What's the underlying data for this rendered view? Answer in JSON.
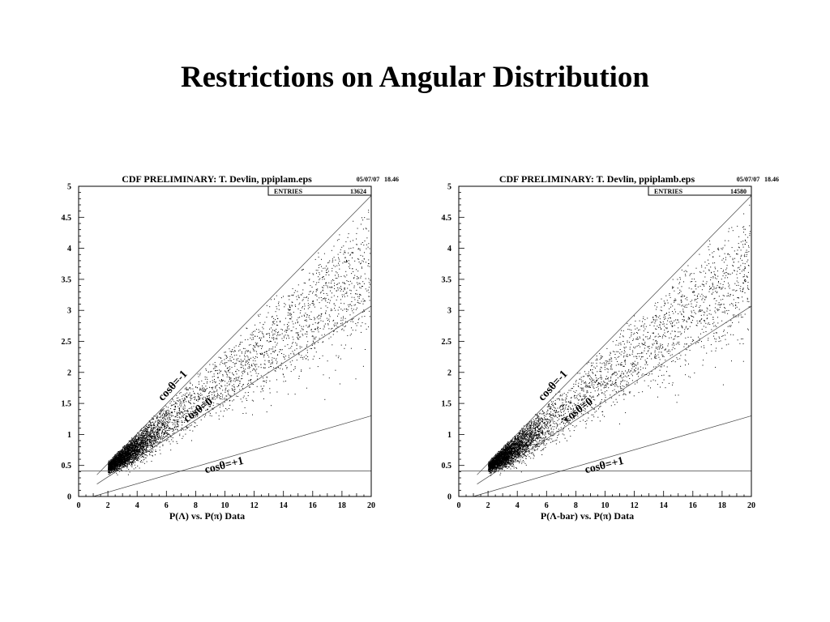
{
  "slide_title": "Restrictions on Angular Distribution",
  "colors": {
    "ink": "#000000",
    "line": "#444444",
    "background": "#ffffff"
  },
  "chart_data": [
    {
      "type": "scatter",
      "title": "CDF PRELIMINARY: T. Devlin, ppiplam.eps",
      "date": "05/07/07",
      "time": "18.46",
      "stats_label": "ENTRIES",
      "stats_value": "13624",
      "xlabel": "P(Λ) vs. P(π) Data",
      "xlim": [
        0,
        20
      ],
      "ylim": [
        0,
        5
      ],
      "xticks": [
        0,
        2,
        4,
        6,
        8,
        10,
        12,
        14,
        16,
        18,
        20
      ],
      "yticks": [
        0,
        0.5,
        1,
        1.5,
        2,
        2.5,
        3,
        3.5,
        4,
        4.5,
        5
      ],
      "guide_lines": [
        {
          "label": "cosθ=-1",
          "from": [
            1.25,
            0.35
          ],
          "to": [
            20,
            4.85
          ]
        },
        {
          "label": "cosθ=0",
          "from": [
            1.25,
            0.2
          ],
          "to": [
            20,
            3.07
          ]
        },
        {
          "label": "cosθ=+1",
          "from": [
            1.0,
            0.0
          ],
          "to": [
            20,
            1.3
          ]
        },
        {
          "label": "",
          "from": [
            0,
            0.41
          ],
          "to": [
            20,
            0.41
          ]
        }
      ],
      "annotations": [
        {
          "text": "cosθ=-1",
          "at": [
            6.6,
            1.75
          ],
          "angle_deg": -47
        },
        {
          "text": "cosθ=0",
          "at": [
            8.3,
            1.35
          ],
          "angle_deg": -37
        },
        {
          "text": "cosθ=+1",
          "at": [
            10.0,
            0.45
          ],
          "angle_deg": -14
        }
      ]
    },
    {
      "type": "scatter",
      "title": "CDF PRELIMINARY: T. Devlin, ppiplamb.eps",
      "date": "05/07/07",
      "time": "18.46",
      "stats_label": "ENTRIES",
      "stats_value": "14580",
      "xlabel": "P(Λ-bar) vs. P(π) Data",
      "xlim": [
        0,
        20
      ],
      "ylim": [
        0,
        5
      ],
      "xticks": [
        0,
        2,
        4,
        6,
        8,
        10,
        12,
        14,
        16,
        18,
        20
      ],
      "yticks": [
        0,
        0.5,
        1,
        1.5,
        2,
        2.5,
        3,
        3.5,
        4,
        4.5,
        5
      ],
      "guide_lines": [
        {
          "label": "cosθ=-1",
          "from": [
            1.25,
            0.35
          ],
          "to": [
            20,
            4.85
          ]
        },
        {
          "label": "cosθ=0",
          "from": [
            1.25,
            0.2
          ],
          "to": [
            20,
            3.07
          ]
        },
        {
          "label": "cosθ=+1",
          "from": [
            1.0,
            0.0
          ],
          "to": [
            20,
            1.3
          ]
        },
        {
          "label": "",
          "from": [
            0,
            0.41
          ],
          "to": [
            20,
            0.41
          ]
        }
      ],
      "annotations": [
        {
          "text": "cosθ=-1",
          "at": [
            6.6,
            1.75
          ],
          "angle_deg": -47
        },
        {
          "text": "cosθ=0",
          "at": [
            8.3,
            1.35
          ],
          "angle_deg": -37
        },
        {
          "text": "cosθ=+1",
          "at": [
            10.0,
            0.45
          ],
          "angle_deg": -14
        }
      ]
    }
  ]
}
